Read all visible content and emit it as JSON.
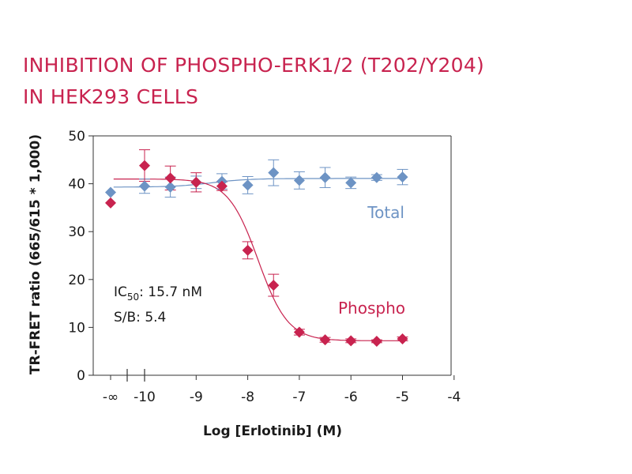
{
  "title": {
    "line1": "INHIBITION OF PHOSPHO-ERK1/2 (T202/Y204)",
    "line2": "IN HEK293 CELLS"
  },
  "colors": {
    "phospho": "#c8234f",
    "total": "#6d93c4",
    "axis": "#333333",
    "text": "#1a1a1a"
  },
  "chart_data": {
    "type": "scatter",
    "xlabel": "Log [Erlotinib] (M)",
    "ylabel": "TR-FRET ratio (665/615 * 1,000)",
    "xlim": [
      -10,
      -4
    ],
    "ylim": [
      0,
      50
    ],
    "x_ticks": [
      "-10",
      "-9",
      "-8",
      "-7",
      "-6",
      "-5",
      "-4"
    ],
    "x_tick_values": [
      -10,
      -9,
      -8,
      -7,
      -6,
      -5,
      -4
    ],
    "x_zero_label": "-∞",
    "y_ticks": [
      "0",
      "10",
      "20",
      "30",
      "40",
      "50"
    ],
    "y_tick_values": [
      0,
      10,
      20,
      30,
      40,
      50
    ],
    "series": [
      {
        "name": "Total",
        "color": "#6d93c4",
        "control": {
          "y": 38.2
        },
        "x": [
          -10,
          -9.5,
          -9,
          -8.5,
          -8,
          -7.5,
          -7,
          -6.5,
          -6,
          -5.5,
          -5
        ],
        "y": [
          39.5,
          39.3,
          40.3,
          40.5,
          39.7,
          42.3,
          40.7,
          41.3,
          40.2,
          41.3,
          41.4
        ],
        "err": [
          1.5,
          2.1,
          1.3,
          1.6,
          1.8,
          2.7,
          1.8,
          2.1,
          1.2,
          0.6,
          1.6
        ]
      },
      {
        "name": "Phospho",
        "color": "#c8234f",
        "control": {
          "y": 36.0
        },
        "x": [
          -10,
          -9.5,
          -9,
          -8.5,
          -8,
          -7.5,
          -7,
          -6.5,
          -6,
          -5.5,
          -5
        ],
        "y": [
          43.8,
          41.2,
          40.3,
          39.5,
          26.1,
          18.8,
          9.0,
          7.4,
          7.2,
          7.1,
          7.6
        ],
        "err": [
          3.3,
          2.5,
          2.0,
          0.9,
          1.8,
          2.3,
          0.6,
          0.5,
          0.4,
          0.3,
          0.4
        ]
      }
    ],
    "annotations": {
      "ic50_prefix": "IC",
      "ic50_sub": "50",
      "ic50_value": ": 15.7 nM",
      "sb": "S/B: 5.4"
    }
  }
}
